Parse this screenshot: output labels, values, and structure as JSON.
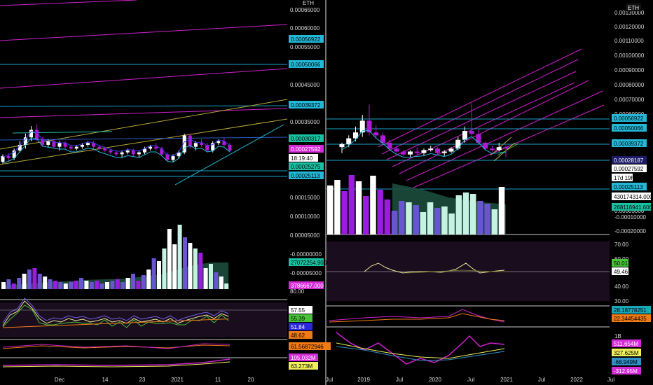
{
  "currency_label": "ETH",
  "colors": {
    "up": "#ffffff",
    "down": "#b01ad8",
    "vol_down": "#9a1ce0",
    "vol_up": "#ffffff",
    "vol_mid": "#6a55d0",
    "vol_light": "#c6f2e4",
    "ma_area": "#1b4d3c",
    "magenta": "#d01fd0",
    "gold": "#b8a83a",
    "cyan": "#23b8d8",
    "teal": "#19c1a3",
    "green": "#48c238",
    "orange": "#f07a14",
    "blue": "#2a28d8",
    "yellow": "#f0f05a",
    "badge_magenta": "#d52ad8"
  },
  "left": {
    "price_ticks": [
      "0.00065000",
      "0.00060000",
      "0.00055000",
      "0.00045000",
      "0.00035000",
      "0.00015000",
      "0.00010000",
      "0.00005000",
      "-0.00000000",
      "-0.00005000"
    ],
    "price_badges": [
      "0.00056922",
      "0.00050066",
      "0.00039372",
      "0.00030317",
      "0.00027592",
      "18:19:40",
      "0.00025275",
      "0.00025113"
    ],
    "volume_badges": [
      "27072254.900",
      "3786667.000"
    ],
    "rsi_top_tick": "80.00",
    "rsi_badges": [
      "57.55",
      "55.39",
      "51.84",
      "48.62"
    ],
    "macd_badge": "61.56872946",
    "obv_badges": [
      "105.032M",
      "63.273M"
    ],
    "time_ticks": [
      "Dec",
      "14",
      "23",
      "2021",
      "11",
      "20"
    ]
  },
  "right": {
    "price_ticks": [
      "0.00130000",
      "0.00120000",
      "0.00110000",
      "0.00100000",
      "0.00090000",
      "0.00080000",
      "0.00070000",
      "0.00060000",
      "0.00040000",
      "0.00030000",
      "0.00015000",
      "0.00005000",
      "-0.00005000",
      "-0.00010000",
      "-0.00020000"
    ],
    "price_badges": [
      "0.00056922",
      "0.00050066",
      "0.00039372",
      "0.00028187",
      "0.00027592",
      "17d 19h",
      "0.00025113"
    ],
    "volume_badges": [
      "430174314.000",
      "268116941.600"
    ],
    "rsi_ticks": [
      "70.00",
      "60.00",
      "50.00",
      "40.00",
      "30.00"
    ],
    "rsi_badges": [
      "50.01",
      "49.46"
    ],
    "macd_badges": [
      "28.18778251",
      "22.34454435"
    ],
    "obv_top_tick": "1B",
    "obv_badges": [
      "511.654M",
      "327.625M",
      "-68.949M",
      "-312.95M"
    ],
    "time_ticks": [
      "Jul",
      "2019",
      "Jul",
      "2020",
      "Jul",
      "2021",
      "Jul",
      "2022",
      "Jul"
    ]
  },
  "chart_data": [
    {
      "type": "candlestick",
      "pane": "left",
      "quote": "ETH",
      "x_ticks": [
        "Dec",
        "14",
        "23",
        "2021",
        "11",
        "20"
      ],
      "last_price": 0.00027592,
      "levels": [
        0.00056922,
        0.00050066,
        0.00039372,
        0.00030317,
        0.00025275,
        0.00025113
      ],
      "countdown": "18:19:40",
      "candles": [
        {
          "o": 0.000245,
          "h": 0.000265,
          "l": 0.00024,
          "c": 0.00026
        },
        {
          "o": 0.00026,
          "h": 0.000268,
          "l": 0.000245,
          "c": 0.000255
        },
        {
          "o": 0.000255,
          "h": 0.00028,
          "l": 0.00025,
          "c": 0.000275
        },
        {
          "o": 0.000275,
          "h": 0.0003,
          "l": 0.00027,
          "c": 0.00029
        },
        {
          "o": 0.00029,
          "h": 0.00032,
          "l": 0.00028,
          "c": 0.00031
        },
        {
          "o": 0.00031,
          "h": 0.00034,
          "l": 0.0003,
          "c": 0.00033
        },
        {
          "o": 0.00033,
          "h": 0.000345,
          "l": 0.0003,
          "c": 0.000305
        },
        {
          "o": 0.000305,
          "h": 0.00031,
          "l": 0.000285,
          "c": 0.00029
        },
        {
          "o": 0.00029,
          "h": 0.000305,
          "l": 0.000285,
          "c": 0.0003
        },
        {
          "o": 0.0003,
          "h": 0.000305,
          "l": 0.00028,
          "c": 0.000285
        },
        {
          "o": 0.000285,
          "h": 0.0003,
          "l": 0.000275,
          "c": 0.000295
        },
        {
          "o": 0.000295,
          "h": 0.0003,
          "l": 0.00028,
          "c": 0.000285
        },
        {
          "o": 0.000285,
          "h": 0.00029,
          "l": 0.000275,
          "c": 0.00028
        },
        {
          "o": 0.00028,
          "h": 0.00029,
          "l": 0.000275,
          "c": 0.000285
        },
        {
          "o": 0.000285,
          "h": 0.000295,
          "l": 0.00028,
          "c": 0.00029
        },
        {
          "o": 0.00029,
          "h": 0.0003,
          "l": 0.000285,
          "c": 0.000295
        },
        {
          "o": 0.000295,
          "h": 0.0003,
          "l": 0.00028,
          "c": 0.000285
        },
        {
          "o": 0.000285,
          "h": 0.00029,
          "l": 0.000275,
          "c": 0.00028
        },
        {
          "o": 0.00028,
          "h": 0.000285,
          "l": 0.00027,
          "c": 0.000275
        },
        {
          "o": 0.000275,
          "h": 0.00028,
          "l": 0.000265,
          "c": 0.00027
        },
        {
          "o": 0.00027,
          "h": 0.000275,
          "l": 0.00026,
          "c": 0.000265
        },
        {
          "o": 0.000265,
          "h": 0.000275,
          "l": 0.000255,
          "c": 0.00027
        },
        {
          "o": 0.00027,
          "h": 0.00028,
          "l": 0.000265,
          "c": 0.000275
        },
        {
          "o": 0.000275,
          "h": 0.00028,
          "l": 0.00026,
          "c": 0.000265
        },
        {
          "o": 0.000265,
          "h": 0.000275,
          "l": 0.000255,
          "c": 0.00027
        },
        {
          "o": 0.00027,
          "h": 0.000285,
          "l": 0.000265,
          "c": 0.00028
        },
        {
          "o": 0.00028,
          "h": 0.00029,
          "l": 0.000275,
          "c": 0.000285
        },
        {
          "o": 0.000285,
          "h": 0.000295,
          "l": 0.000275,
          "c": 0.00028
        },
        {
          "o": 0.00028,
          "h": 0.000285,
          "l": 0.00026,
          "c": 0.000265
        },
        {
          "o": 0.000265,
          "h": 0.00027,
          "l": 0.000245,
          "c": 0.00025
        },
        {
          "o": 0.00025,
          "h": 0.000265,
          "l": 0.000245,
          "c": 0.00026
        },
        {
          "o": 0.00026,
          "h": 0.000275,
          "l": 0.000255,
          "c": 0.00027
        },
        {
          "o": 0.00027,
          "h": 0.00032,
          "l": 0.000265,
          "c": 0.000315
        },
        {
          "o": 0.000315,
          "h": 0.00032,
          "l": 0.00028,
          "c": 0.000285
        },
        {
          "o": 0.000285,
          "h": 0.0003,
          "l": 0.000275,
          "c": 0.000295
        },
        {
          "o": 0.000295,
          "h": 0.000305,
          "l": 0.000285,
          "c": 0.00029
        },
        {
          "o": 0.00029,
          "h": 0.000295,
          "l": 0.00027,
          "c": 0.000275
        },
        {
          "o": 0.000275,
          "h": 0.0003,
          "l": 0.00027,
          "c": 0.000295
        },
        {
          "o": 0.000295,
          "h": 0.000305,
          "l": 0.00029,
          "c": 0.0003
        },
        {
          "o": 0.0003,
          "h": 0.00031,
          "l": 0.000285,
          "c": 0.00029
        },
        {
          "o": 0.00029,
          "h": 0.000295,
          "l": 0.00027,
          "c": 0.000275
        }
      ]
    },
    {
      "type": "candlestick",
      "pane": "right",
      "quote": "ETH",
      "x_ticks": [
        "Jul",
        "2019",
        "Jul",
        "2020",
        "Jul",
        "2021",
        "Jul",
        "2022",
        "Jul"
      ],
      "last_price": 0.00027592,
      "levels": [
        0.00056922,
        0.00050066,
        0.00039372,
        0.00028187,
        0.00025113
      ],
      "countdown": "17d 19h",
      "candles": [
        {
          "o": 0.00028,
          "h": 0.00031,
          "l": 0.00024,
          "c": 0.0003
        },
        {
          "o": 0.0003,
          "h": 0.00036,
          "l": 0.00028,
          "c": 0.00034
        },
        {
          "o": 0.00034,
          "h": 0.00042,
          "l": 0.00032,
          "c": 0.00038
        },
        {
          "o": 0.00038,
          "h": 0.0005,
          "l": 0.00035,
          "c": 0.00046
        },
        {
          "o": 0.00046,
          "h": 0.00057,
          "l": 0.00036,
          "c": 0.00038
        },
        {
          "o": 0.00038,
          "h": 0.00043,
          "l": 0.00034,
          "c": 0.00036
        },
        {
          "o": 0.00036,
          "h": 0.00038,
          "l": 0.0003,
          "c": 0.00031
        },
        {
          "o": 0.00031,
          "h": 0.00033,
          "l": 0.00026,
          "c": 0.00027
        },
        {
          "o": 0.00027,
          "h": 0.00029,
          "l": 0.00024,
          "c": 0.00025
        },
        {
          "o": 0.00025,
          "h": 0.00026,
          "l": 0.00022,
          "c": 0.00023
        },
        {
          "o": 0.00023,
          "h": 0.00026,
          "l": 0.00021,
          "c": 0.00025
        },
        {
          "o": 0.00025,
          "h": 0.00028,
          "l": 0.00023,
          "c": 0.00024
        },
        {
          "o": 0.00024,
          "h": 0.00027,
          "l": 0.00022,
          "c": 0.00026
        },
        {
          "o": 0.00026,
          "h": 0.00029,
          "l": 0.00025,
          "c": 0.00027
        },
        {
          "o": 0.00027,
          "h": 0.00028,
          "l": 0.00023,
          "c": 0.00024
        },
        {
          "o": 0.00024,
          "h": 0.00026,
          "l": 0.00022,
          "c": 0.00025
        },
        {
          "o": 0.00025,
          "h": 0.00028,
          "l": 0.00024,
          "c": 0.00027
        },
        {
          "o": 0.00027,
          "h": 0.00035,
          "l": 0.00026,
          "c": 0.00033
        },
        {
          "o": 0.00033,
          "h": 0.00042,
          "l": 0.00031,
          "c": 0.00039
        },
        {
          "o": 0.00039,
          "h": 0.00058,
          "l": 0.00036,
          "c": 0.00037
        },
        {
          "o": 0.00037,
          "h": 0.0004,
          "l": 0.0003,
          "c": 0.00031
        },
        {
          "o": 0.00031,
          "h": 0.00032,
          "l": 0.00026,
          "c": 0.00027
        },
        {
          "o": 0.00027,
          "h": 0.00029,
          "l": 0.00025,
          "c": 0.00026
        },
        {
          "o": 0.00026,
          "h": 0.00031,
          "l": 0.00025,
          "c": 0.00028
        },
        {
          "o": 0.00028,
          "h": 0.00029,
          "l": 0.00021,
          "c": 0.00027
        }
      ]
    }
  ]
}
